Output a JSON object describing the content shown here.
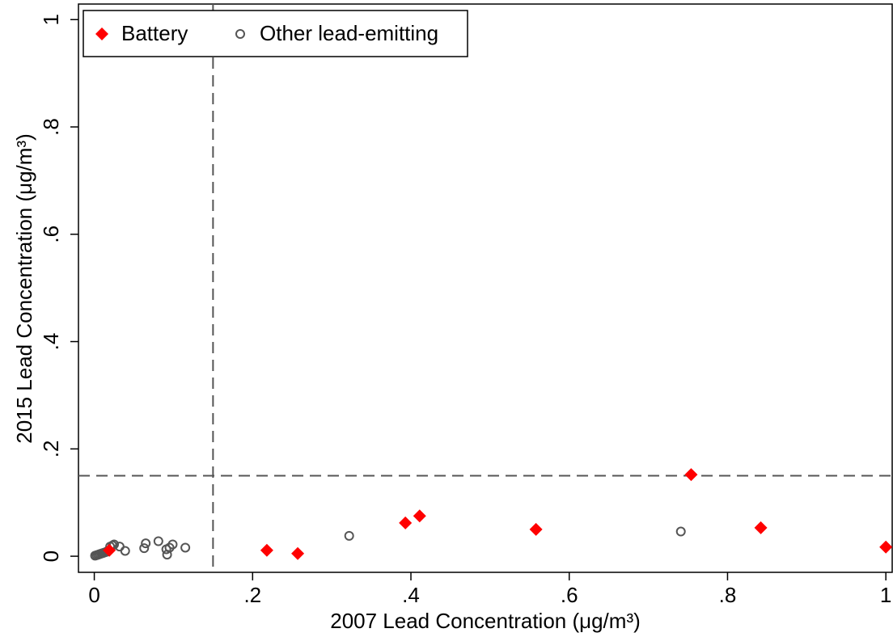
{
  "chart_data": {
    "type": "scatter",
    "xlabel": "2007 Lead Concentration (μg/m³)",
    "ylabel": "2015 Lead Concentration (μg/m³)",
    "xlim": [
      -0.02,
      1.008
    ],
    "ylim": [
      -0.03,
      1.029
    ],
    "xticks": [
      0,
      {
        "value": 0.2,
        "label": ".2"
      },
      {
        "value": 0.4,
        "label": ".4"
      },
      {
        "value": 0.6,
        "label": ".6"
      },
      {
        "value": 0.8,
        "label": ".8"
      },
      1
    ],
    "yticks": [
      0,
      {
        "value": 0.2,
        "label": ".2"
      },
      {
        "value": 0.4,
        "label": ".4"
      },
      {
        "value": 0.6,
        "label": ".6"
      },
      {
        "value": 0.8,
        "label": ".8"
      },
      1
    ],
    "reference_lines": {
      "x": 0.15,
      "y": 0.15
    },
    "legend": "top-left",
    "series": [
      {
        "name": "Battery",
        "color": "#ff0000",
        "marker": "diamond",
        "x": [
          0.019,
          0.218,
          0.257,
          0.393,
          0.411,
          0.558,
          0.754,
          0.842,
          1.0
        ],
        "values": [
          0.011,
          0.011,
          0.005,
          0.062,
          0.075,
          0.05,
          0.152,
          0.053,
          0.017
        ]
      },
      {
        "name": "Other lead-emitting",
        "color": "#555555",
        "marker": "circle",
        "x": [
          0.001,
          0.003,
          0.005,
          0.007,
          0.009,
          0.011,
          0.013,
          0.015,
          0.017,
          0.02,
          0.023,
          0.025,
          0.032,
          0.039,
          0.063,
          0.065,
          0.081,
          0.091,
          0.092,
          0.095,
          0.099,
          0.115,
          0.322,
          0.741
        ],
        "values": [
          0.001,
          0.002,
          0.003,
          0.004,
          0.005,
          0.006,
          0.007,
          0.008,
          0.01,
          0.018,
          0.02,
          0.022,
          0.018,
          0.01,
          0.015,
          0.024,
          0.028,
          0.013,
          0.003,
          0.016,
          0.022,
          0.016,
          0.038,
          0.046
        ]
      }
    ]
  }
}
